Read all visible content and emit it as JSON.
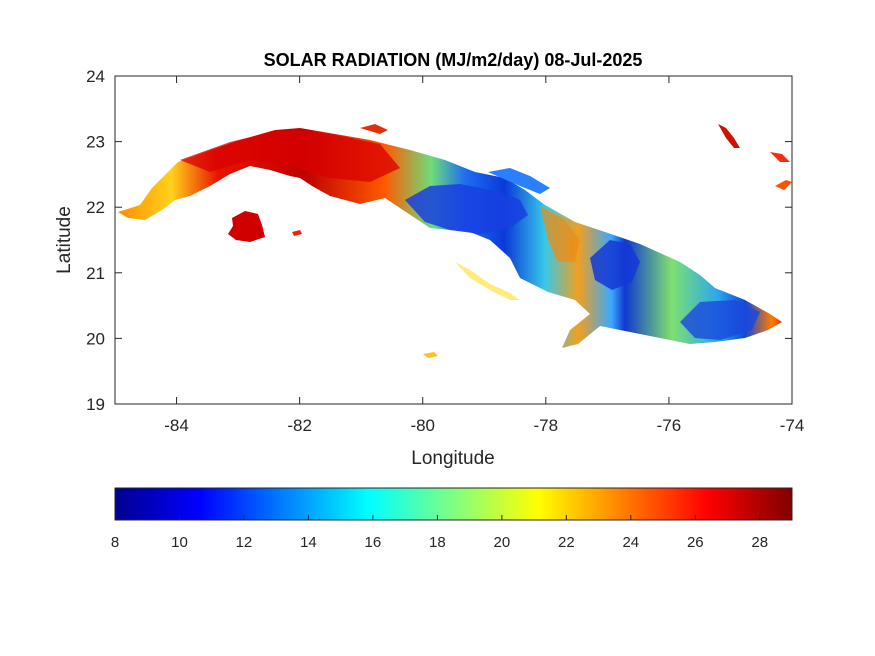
{
  "chart_data": {
    "type": "heatmap",
    "title": "SOLAR RADIATION (MJ/m2/day) 08-Jul-2025",
    "xlabel": "Longitude",
    "ylabel": "Latitude",
    "xlim": [
      -85,
      -74
    ],
    "ylim": [
      19,
      24
    ],
    "xticks": [
      -84,
      -82,
      -80,
      -78,
      -76,
      -74
    ],
    "yticks": [
      19,
      20,
      21,
      22,
      23,
      24
    ],
    "grid": false,
    "colormap": "jet",
    "colorbar": {
      "location": "bottom",
      "range": [
        8,
        29
      ],
      "ticks": [
        8,
        10,
        12,
        14,
        16,
        18,
        20,
        22,
        24,
        26,
        28
      ]
    },
    "regions": [
      {
        "name": "",
        "approx_center": [
          -83.3,
          22.6
        ],
        "value": 26
      },
      {
        "name": "",
        "approx_center": [
          -81.8,
          22.9
        ],
        "value": 27
      },
      {
        "name": "",
        "approx_center": [
          -80.9,
          22.6
        ],
        "value": 24
      },
      {
        "name": "",
        "approx_center": [
          -79.6,
          22.1
        ],
        "value": 13
      },
      {
        "name": "",
        "approx_center": [
          -78.6,
          21.8
        ],
        "value": 14
      },
      {
        "name": "",
        "approx_center": [
          -77.9,
          21.4
        ],
        "value": 22
      },
      {
        "name": "",
        "approx_center": [
          -77.2,
          21.1
        ],
        "value": 11
      },
      {
        "name": "",
        "approx_center": [
          -76.3,
          20.9
        ],
        "value": 17
      },
      {
        "name": "",
        "approx_center": [
          -75.4,
          20.3
        ],
        "value": 12
      },
      {
        "name": "",
        "approx_center": [
          -77.5,
          20.2
        ],
        "value": 19
      },
      {
        "name": "",
        "approx_center": [
          -82.9,
          21.7
        ],
        "value": 27
      }
    ]
  }
}
